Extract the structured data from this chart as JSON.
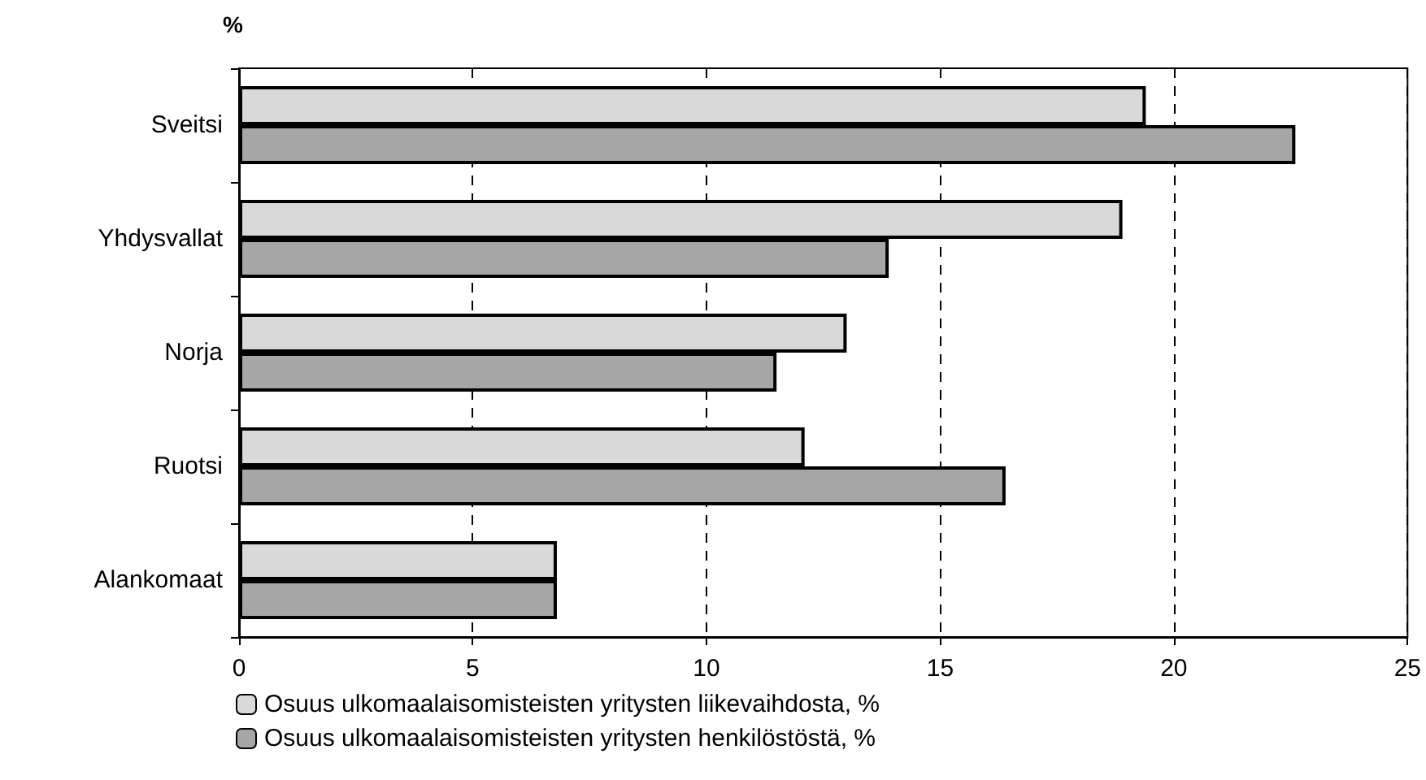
{
  "chart_data": {
    "type": "bar",
    "orientation": "horizontal",
    "xlabel": "%",
    "categories": [
      "Sveitsi",
      "Yhdysvallat",
      "Norja",
      "Ruotsi",
      "Alankomaat"
    ],
    "series": [
      {
        "name": "Osuus ulkomaalaisomisteisten yritysten liikevaihdosta, %",
        "color": "#d9d9d9",
        "values": [
          19.4,
          18.9,
          13.0,
          12.1,
          6.8
        ]
      },
      {
        "name": "Osuus ulkomaalaisomisteisten yritysten henkilöstöstä, %",
        "color": "#a6a6a6",
        "values": [
          22.6,
          13.9,
          11.5,
          16.4,
          6.8
        ]
      }
    ],
    "xlim": [
      0,
      25
    ],
    "xticks": [
      0,
      5,
      10,
      15,
      20,
      25
    ],
    "grid": "x",
    "legend": "bottom"
  }
}
